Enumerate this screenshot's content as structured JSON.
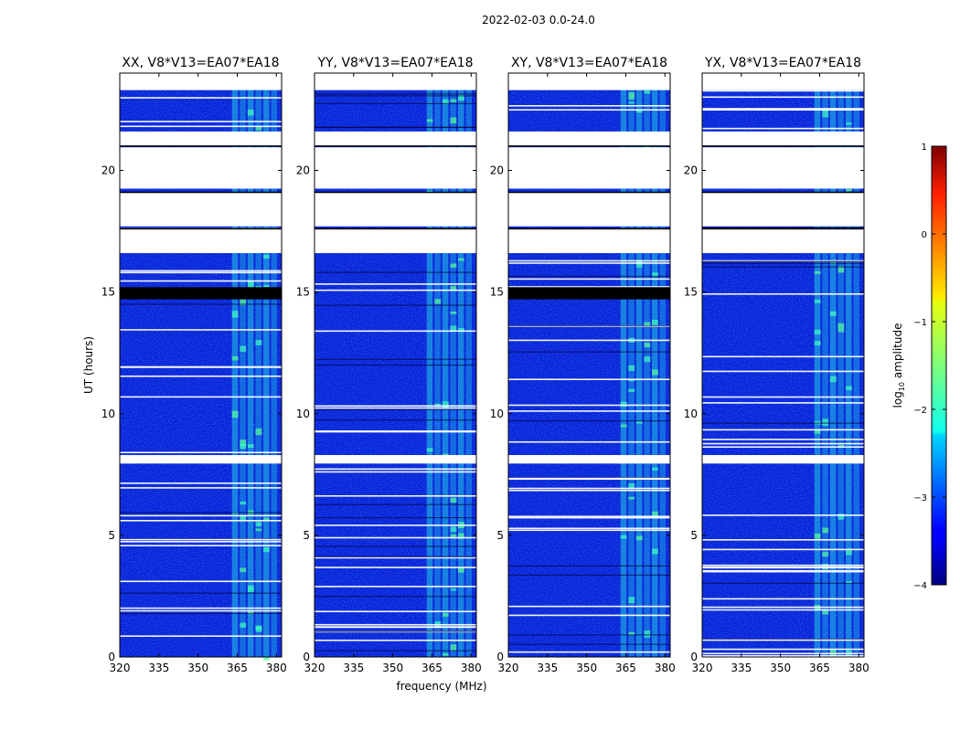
{
  "figure": {
    "suptitle": "2022-02-03 0.0-24.0"
  },
  "chart_data": {
    "type": "heatmap",
    "title": "2022-02-03 0.0-24.0",
    "xlabel": "frequency (MHz)",
    "ylabel": "UT (hours)",
    "xlim": [
      320,
      382
    ],
    "ylim": [
      0,
      24
    ],
    "xticks": [
      "320",
      "335",
      "350",
      "365",
      "380"
    ],
    "yticks": [
      "0",
      "5",
      "10",
      "15",
      "20"
    ],
    "panels": [
      {
        "title": "XX, V8*V13=EA07*EA18",
        "show_ylabel": true,
        "show_xlabel": false,
        "flagged_black_hours": [
          [
            14.7,
            15.2
          ]
        ]
      },
      {
        "title": "YY, V8*V13=EA07*EA18",
        "show_ylabel": false,
        "show_xlabel": true,
        "flagged_black_hours": []
      },
      {
        "title": "XY, V8*V13=EA07*EA18",
        "show_ylabel": false,
        "show_xlabel": false,
        "flagged_black_hours": [
          [
            14.7,
            15.2
          ]
        ]
      },
      {
        "title": "YX, V8*V13=EA07*EA18",
        "show_ylabel": false,
        "show_xlabel": false,
        "flagged_black_hours": []
      }
    ],
    "data_gaps_hours": [
      [
        21.0,
        21.6
      ],
      [
        19.25,
        20.95
      ],
      [
        17.7,
        19.1
      ],
      [
        16.6,
        17.6
      ],
      [
        7.95,
        8.3
      ],
      [
        23.3,
        24.0
      ]
    ],
    "rfi_band_mhz": [
      363,
      381
    ],
    "colorbar": {
      "label": "log10 amplitude",
      "range": [
        -4,
        1
      ],
      "ticks": [
        "1",
        "0",
        "−1",
        "−2",
        "−3",
        "−4"
      ],
      "colormap": "jet"
    }
  }
}
